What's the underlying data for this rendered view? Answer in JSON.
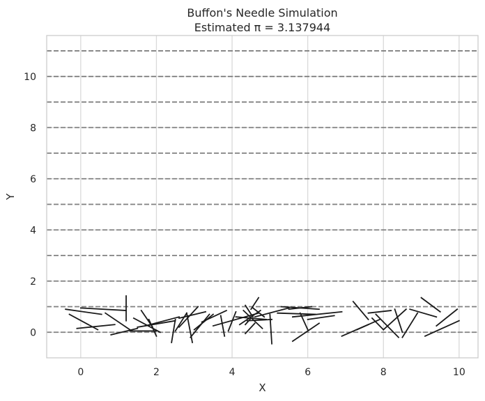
{
  "chart_data": {
    "type": "line",
    "title": "Buffon's Needle Simulation",
    "subtitle": "Estimated π = 3.137944",
    "xlabel": "X",
    "ylabel": "Y",
    "xlim": [
      -0.9,
      10.5
    ],
    "ylim": [
      -1.0,
      11.6
    ],
    "xticks": [
      0,
      2,
      4,
      6,
      8,
      10
    ],
    "yticks": [
      0,
      2,
      4,
      6,
      8,
      10
    ],
    "grid": true,
    "colors": {
      "needle": "#1a1a1a",
      "floor_line": "#808080",
      "grid": "#d9d9d9",
      "frame": "#cccccc"
    },
    "floor_lines_y": [
      0,
      1,
      2,
      3,
      4,
      5,
      6,
      7,
      8,
      9,
      10,
      11
    ],
    "needles": [
      [
        -0.4,
        0.9,
        0.55,
        0.7
      ],
      [
        -0.3,
        0.7,
        0.45,
        0.1
      ],
      [
        -0.1,
        0.15,
        0.9,
        0.3
      ],
      [
        0.0,
        0.95,
        1.2,
        0.85
      ],
      [
        0.65,
        0.75,
        1.3,
        0.1
      ],
      [
        1.2,
        1.42,
        1.2,
        0.45
      ],
      [
        0.8,
        -0.1,
        1.5,
        0.15
      ],
      [
        1.3,
        0.05,
        2.0,
        0.05
      ],
      [
        1.4,
        0.55,
        2.1,
        0.0
      ],
      [
        1.5,
        0.2,
        2.5,
        0.45
      ],
      [
        1.6,
        0.85,
        1.9,
        0.2
      ],
      [
        1.7,
        0.25,
        2.6,
        0.6
      ],
      [
        1.8,
        0.5,
        2.0,
        -0.15
      ],
      [
        2.4,
        -0.4,
        2.5,
        0.5
      ],
      [
        2.5,
        0.05,
        2.8,
        0.75
      ],
      [
        2.6,
        0.55,
        3.3,
        0.8
      ],
      [
        2.8,
        0.75,
        2.95,
        -0.4
      ],
      [
        2.9,
        -0.2,
        3.4,
        0.7
      ],
      [
        3.0,
        0.1,
        3.5,
        0.7
      ],
      [
        3.2,
        0.4,
        3.85,
        0.85
      ],
      [
        3.1,
        1.0,
        2.6,
        0.2
      ],
      [
        3.5,
        0.25,
        4.7,
        0.75
      ],
      [
        3.7,
        0.65,
        3.8,
        -0.15
      ],
      [
        3.9,
        0.05,
        4.1,
        0.8
      ],
      [
        4.1,
        0.6,
        4.9,
        0.5
      ],
      [
        4.2,
        0.3,
        4.75,
        0.85
      ],
      [
        4.35,
        1.05,
        4.55,
        0.6
      ],
      [
        4.3,
        0.85,
        4.8,
        0.15
      ],
      [
        4.4,
        0.45,
        5.05,
        0.5
      ],
      [
        4.35,
        -0.05,
        4.6,
        0.35
      ],
      [
        4.5,
        0.55,
        4.35,
        0.3
      ],
      [
        4.55,
        0.95,
        4.85,
        0.6
      ],
      [
        4.5,
        0.9,
        4.7,
        1.35
      ],
      [
        4.6,
        0.6,
        5.5,
        0.95
      ],
      [
        5.0,
        0.7,
        5.05,
        -0.45
      ],
      [
        5.2,
        0.75,
        6.2,
        0.7
      ],
      [
        5.3,
        1.0,
        6.3,
        0.9
      ],
      [
        5.5,
        0.9,
        6.1,
        1.0
      ],
      [
        5.6,
        -0.35,
        6.3,
        0.35
      ],
      [
        5.6,
        0.6,
        6.9,
        0.8
      ],
      [
        5.8,
        0.75,
        6.0,
        0.1
      ],
      [
        6.0,
        0.5,
        6.7,
        0.65
      ],
      [
        6.9,
        -0.15,
        7.6,
        0.3
      ],
      [
        7.2,
        1.2,
        7.6,
        0.5
      ],
      [
        7.3,
        0.1,
        7.9,
        0.5
      ],
      [
        7.6,
        0.75,
        8.2,
        0.85
      ],
      [
        7.7,
        0.55,
        8.0,
        0.1
      ],
      [
        7.8,
        0.7,
        8.4,
        -0.2
      ],
      [
        8.0,
        0.1,
        8.6,
        0.9
      ],
      [
        8.3,
        0.9,
        8.5,
        0.0
      ],
      [
        8.5,
        -0.2,
        8.9,
        0.75
      ],
      [
        8.7,
        0.9,
        9.4,
        0.6
      ],
      [
        9.0,
        1.35,
        9.5,
        0.8
      ],
      [
        9.1,
        -0.15,
        10.0,
        0.45
      ],
      [
        9.4,
        0.25,
        9.95,
        0.9
      ]
    ]
  }
}
